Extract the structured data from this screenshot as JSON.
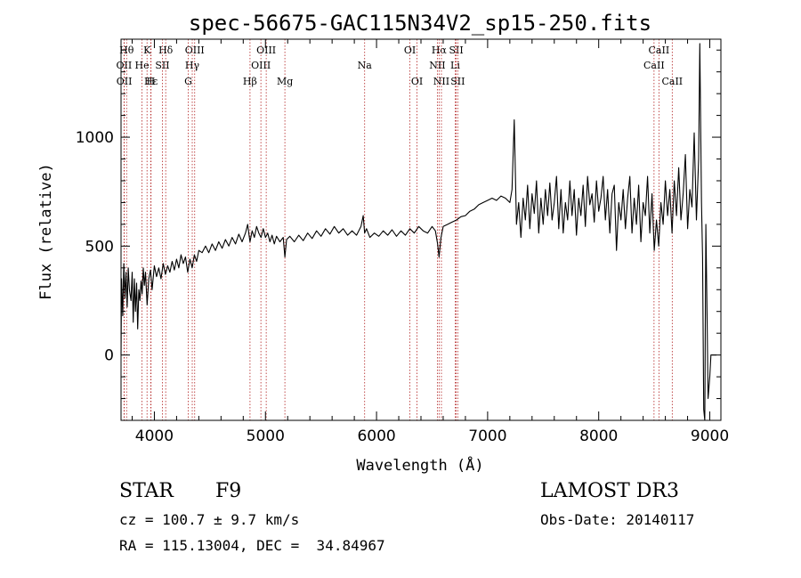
{
  "chart_data": {
    "type": "line",
    "title": "spec-56675-GAC115N34V2_sp15-250.fits",
    "xlabel": "Wavelength (Å)",
    "ylabel": "Flux (relative)",
    "xlim": [
      3700,
      9100
    ],
    "ylim": [
      -300,
      1450
    ],
    "x_ticks": [
      4000,
      5000,
      6000,
      7000,
      8000,
      9000
    ],
    "y_ticks": [
      0,
      500,
      1000
    ],
    "grid": false,
    "series": [
      {
        "values": [
          [
            3700,
            0
          ],
          [
            3705,
            350
          ],
          [
            3715,
            180
          ],
          [
            3725,
            420
          ],
          [
            3735,
            260
          ],
          [
            3745,
            380
          ],
          [
            3755,
            220
          ],
          [
            3765,
            400
          ],
          [
            3775,
            300
          ],
          [
            3790,
            250
          ],
          [
            3800,
            380
          ],
          [
            3810,
            150
          ],
          [
            3820,
            350
          ],
          [
            3830,
            200
          ],
          [
            3840,
            330
          ],
          [
            3850,
            120
          ],
          [
            3860,
            300
          ],
          [
            3870,
            250
          ],
          [
            3880,
            340
          ],
          [
            3890,
            280
          ],
          [
            3900,
            400
          ],
          [
            3910,
            320
          ],
          [
            3920,
            380
          ],
          [
            3935,
            230
          ],
          [
            3950,
            350
          ],
          [
            3965,
            390
          ],
          [
            3980,
            300
          ],
          [
            4000,
            410
          ],
          [
            4020,
            360
          ],
          [
            4040,
            400
          ],
          [
            4060,
            350
          ],
          [
            4080,
            420
          ],
          [
            4100,
            370
          ],
          [
            4120,
            410
          ],
          [
            4140,
            380
          ],
          [
            4160,
            430
          ],
          [
            4180,
            390
          ],
          [
            4200,
            440
          ],
          [
            4220,
            400
          ],
          [
            4240,
            460
          ],
          [
            4260,
            420
          ],
          [
            4280,
            450
          ],
          [
            4300,
            380
          ],
          [
            4320,
            440
          ],
          [
            4340,
            400
          ],
          [
            4360,
            460
          ],
          [
            4380,
            430
          ],
          [
            4400,
            480
          ],
          [
            4430,
            470
          ],
          [
            4460,
            500
          ],
          [
            4490,
            470
          ],
          [
            4520,
            510
          ],
          [
            4550,
            480
          ],
          [
            4580,
            520
          ],
          [
            4610,
            490
          ],
          [
            4640,
            530
          ],
          [
            4670,
            500
          ],
          [
            4700,
            540
          ],
          [
            4730,
            510
          ],
          [
            4760,
            555
          ],
          [
            4790,
            520
          ],
          [
            4820,
            560
          ],
          [
            4840,
            600
          ],
          [
            4850,
            560
          ],
          [
            4861,
            520
          ],
          [
            4880,
            570
          ],
          [
            4900,
            540
          ],
          [
            4920,
            590
          ],
          [
            4940,
            560
          ],
          [
            4960,
            540
          ],
          [
            4980,
            580
          ],
          [
            5000,
            540
          ],
          [
            5020,
            560
          ],
          [
            5040,
            520
          ],
          [
            5060,
            550
          ],
          [
            5080,
            510
          ],
          [
            5100,
            545
          ],
          [
            5130,
            520
          ],
          [
            5160,
            540
          ],
          [
            5175,
            450
          ],
          [
            5190,
            530
          ],
          [
            5220,
            545
          ],
          [
            5260,
            520
          ],
          [
            5300,
            550
          ],
          [
            5340,
            525
          ],
          [
            5380,
            560
          ],
          [
            5420,
            535
          ],
          [
            5460,
            570
          ],
          [
            5500,
            545
          ],
          [
            5540,
            580
          ],
          [
            5580,
            555
          ],
          [
            5620,
            590
          ],
          [
            5660,
            560
          ],
          [
            5700,
            580
          ],
          [
            5740,
            550
          ],
          [
            5780,
            570
          ],
          [
            5820,
            550
          ],
          [
            5860,
            590
          ],
          [
            5880,
            640
          ],
          [
            5893,
            560
          ],
          [
            5910,
            580
          ],
          [
            5940,
            540
          ],
          [
            5980,
            560
          ],
          [
            6020,
            545
          ],
          [
            6060,
            570
          ],
          [
            6100,
            550
          ],
          [
            6140,
            575
          ],
          [
            6180,
            545
          ],
          [
            6220,
            570
          ],
          [
            6260,
            550
          ],
          [
            6300,
            580
          ],
          [
            6340,
            560
          ],
          [
            6380,
            590
          ],
          [
            6420,
            570
          ],
          [
            6460,
            560
          ],
          [
            6500,
            590
          ],
          [
            6530,
            570
          ],
          [
            6550,
            510
          ],
          [
            6563,
            450
          ],
          [
            6580,
            540
          ],
          [
            6600,
            590
          ],
          [
            6640,
            600
          ],
          [
            6680,
            610
          ],
          [
            6720,
            620
          ],
          [
            6760,
            635
          ],
          [
            6800,
            640
          ],
          [
            6840,
            660
          ],
          [
            6880,
            670
          ],
          [
            6920,
            690
          ],
          [
            6960,
            700
          ],
          [
            7000,
            710
          ],
          [
            7040,
            720
          ],
          [
            7080,
            710
          ],
          [
            7120,
            730
          ],
          [
            7160,
            720
          ],
          [
            7200,
            700
          ],
          [
            7220,
            760
          ],
          [
            7240,
            1080
          ],
          [
            7260,
            600
          ],
          [
            7280,
            700
          ],
          [
            7300,
            540
          ],
          [
            7320,
            720
          ],
          [
            7340,
            620
          ],
          [
            7360,
            780
          ],
          [
            7380,
            580
          ],
          [
            7400,
            740
          ],
          [
            7420,
            650
          ],
          [
            7440,
            800
          ],
          [
            7460,
            560
          ],
          [
            7480,
            720
          ],
          [
            7500,
            600
          ],
          [
            7520,
            760
          ],
          [
            7540,
            640
          ],
          [
            7560,
            790
          ],
          [
            7580,
            620
          ],
          [
            7600,
            700
          ],
          [
            7620,
            820
          ],
          [
            7640,
            580
          ],
          [
            7660,
            760
          ],
          [
            7680,
            560
          ],
          [
            7700,
            700
          ],
          [
            7720,
            620
          ],
          [
            7740,
            800
          ],
          [
            7760,
            640
          ],
          [
            7780,
            760
          ],
          [
            7800,
            550
          ],
          [
            7820,
            720
          ],
          [
            7840,
            640
          ],
          [
            7860,
            780
          ],
          [
            7880,
            590
          ],
          [
            7900,
            820
          ],
          [
            7920,
            690
          ],
          [
            7940,
            740
          ],
          [
            7960,
            610
          ],
          [
            7980,
            800
          ],
          [
            8000,
            660
          ],
          [
            8020,
            720
          ],
          [
            8040,
            820
          ],
          [
            8060,
            620
          ],
          [
            8080,
            760
          ],
          [
            8100,
            560
          ],
          [
            8120,
            740
          ],
          [
            8140,
            780
          ],
          [
            8160,
            480
          ],
          [
            8180,
            700
          ],
          [
            8200,
            620
          ],
          [
            8220,
            760
          ],
          [
            8240,
            580
          ],
          [
            8260,
            720
          ],
          [
            8280,
            820
          ],
          [
            8300,
            560
          ],
          [
            8320,
            720
          ],
          [
            8340,
            600
          ],
          [
            8360,
            780
          ],
          [
            8380,
            520
          ],
          [
            8400,
            700
          ],
          [
            8420,
            640
          ],
          [
            8440,
            820
          ],
          [
            8460,
            560
          ],
          [
            8480,
            740
          ],
          [
            8500,
            480
          ],
          [
            8520,
            620
          ],
          [
            8540,
            500
          ],
          [
            8560,
            700
          ],
          [
            8580,
            600
          ],
          [
            8600,
            800
          ],
          [
            8620,
            640
          ],
          [
            8640,
            760
          ],
          [
            8660,
            560
          ],
          [
            8680,
            800
          ],
          [
            8700,
            640
          ],
          [
            8720,
            860
          ],
          [
            8740,
            620
          ],
          [
            8760,
            740
          ],
          [
            8780,
            920
          ],
          [
            8800,
            580
          ],
          [
            8820,
            760
          ],
          [
            8840,
            680
          ],
          [
            8860,
            1020
          ],
          [
            8880,
            620
          ],
          [
            8900,
            900
          ],
          [
            8910,
            1430
          ],
          [
            8925,
            700
          ],
          [
            8935,
            450
          ],
          [
            8945,
            -250
          ],
          [
            8955,
            -300
          ],
          [
            8965,
            600
          ],
          [
            8975,
            200
          ],
          [
            8985,
            -200
          ],
          [
            9000,
            -100
          ],
          [
            9010,
            0
          ],
          [
            9040,
            0
          ],
          [
            9060,
            0
          ]
        ]
      }
    ],
    "line_markers": [
      {
        "label": "Hθ",
        "x": 3750,
        "row": 0
      },
      {
        "label": "K",
        "x": 3934,
        "row": 0
      },
      {
        "label": "Hδ",
        "x": 4102,
        "row": 0
      },
      {
        "label": "OIII",
        "x": 4363,
        "row": 0
      },
      {
        "label": "OIII",
        "x": 5007,
        "row": 0
      },
      {
        "label": "OI",
        "x": 6300,
        "row": 0
      },
      {
        "label": "Hα",
        "x": 6563,
        "row": 0
      },
      {
        "label": "SII",
        "x": 6717,
        "row": 0
      },
      {
        "label": "CaII",
        "x": 8542,
        "row": 0
      },
      {
        "label": "OII",
        "x": 3727,
        "row": 1
      },
      {
        "label": "He",
        "x": 3889,
        "row": 1
      },
      {
        "label": "SII",
        "x": 4072,
        "row": 1
      },
      {
        "label": "Hγ",
        "x": 4341,
        "row": 1
      },
      {
        "label": "OIII",
        "x": 4959,
        "row": 1
      },
      {
        "label": "Na",
        "x": 5893,
        "row": 1
      },
      {
        "label": "NII",
        "x": 6548,
        "row": 1
      },
      {
        "label": "Li",
        "x": 6708,
        "row": 1
      },
      {
        "label": "CaII",
        "x": 8498,
        "row": 1
      },
      {
        "label": "OII",
        "x": 3729,
        "row": 2
      },
      {
        "label": "Hε",
        "x": 3970,
        "row": 2
      },
      {
        "label": "H",
        "x": 3968,
        "row": 2
      },
      {
        "label": "G",
        "x": 4305,
        "row": 2
      },
      {
        "label": "Hβ",
        "x": 4861,
        "row": 2
      },
      {
        "label": "Mg",
        "x": 5175,
        "row": 2
      },
      {
        "label": "OI",
        "x": 6364,
        "row": 2
      },
      {
        "label": "NII",
        "x": 6584,
        "row": 2
      },
      {
        "label": "SII",
        "x": 6731,
        "row": 2
      },
      {
        "label": "CaII",
        "x": 8662,
        "row": 2
      }
    ]
  },
  "info": {
    "class": "STAR",
    "subclass": "F9",
    "cz": "cz = 100.7 ± 9.7 km/s",
    "radec": "RA = 115.13004, DEC =  34.84967",
    "survey": "LAMOST DR3",
    "obs_date": "Obs-Date: 20140117"
  },
  "colors": {
    "line_marker": "#b22222",
    "spectrum": "#000000",
    "background": "#ffffff"
  }
}
